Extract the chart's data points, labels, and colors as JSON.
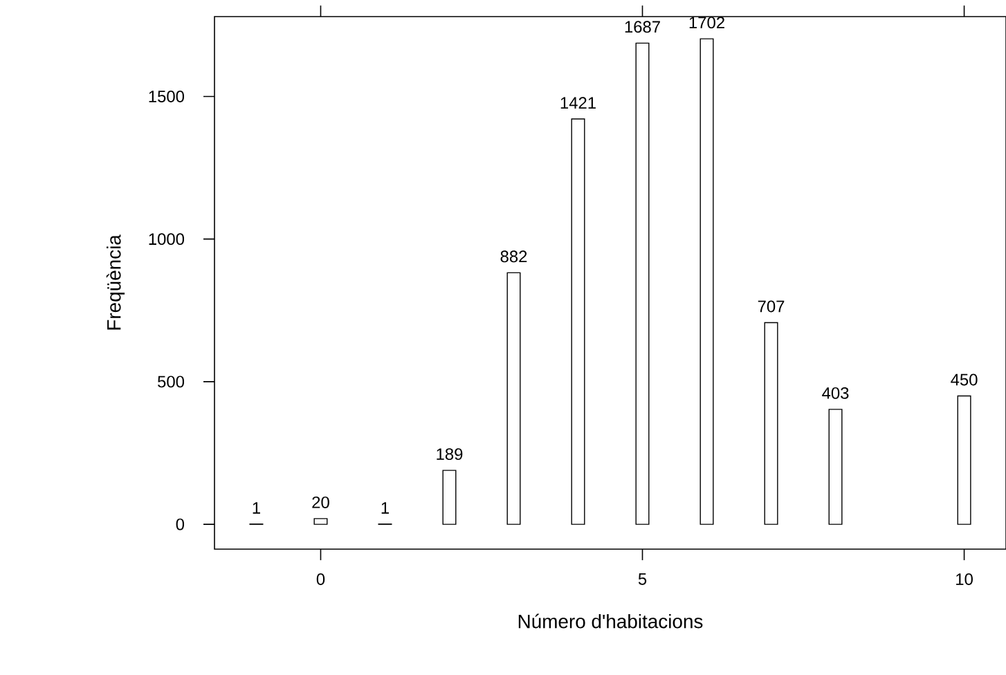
{
  "chart_data": {
    "type": "bar",
    "xlabel": "Número d'habitacions",
    "ylabel": "Freqüència",
    "x": [
      -1,
      0,
      1,
      2,
      3,
      4,
      5,
      6,
      7,
      8,
      10
    ],
    "values": [
      1,
      20,
      1,
      189,
      882,
      1421,
      1687,
      1702,
      707,
      403,
      450
    ],
    "color": "#ffffff",
    "data_labels": true,
    "xlim": [
      -1.65,
      10.65
    ],
    "ylim": [
      -87,
      1780
    ],
    "xticks": [
      0,
      5,
      10
    ],
    "yticks": [
      0,
      500,
      1000,
      1500
    ],
    "grid": false
  }
}
